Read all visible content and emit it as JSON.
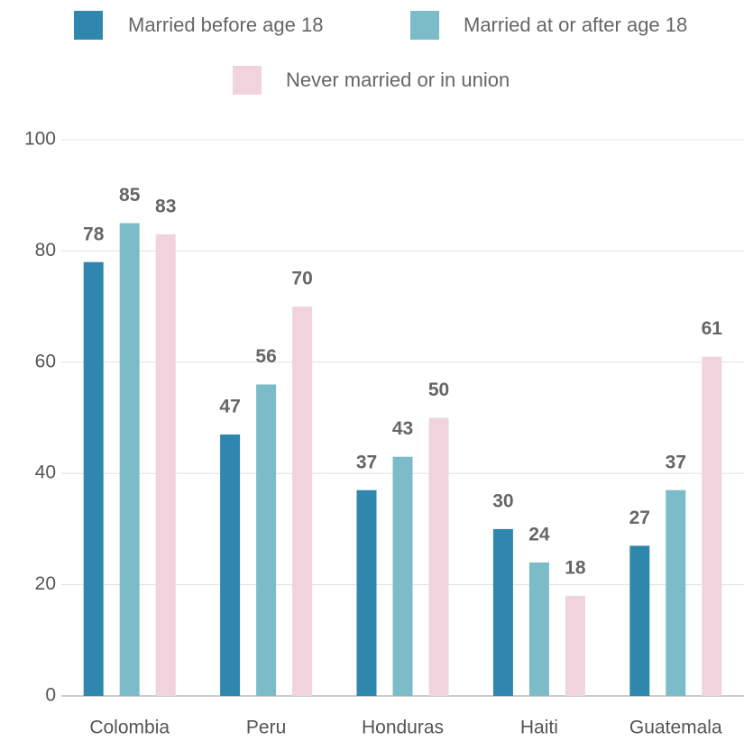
{
  "chart_data": {
    "type": "bar",
    "categories": [
      "Colombia",
      "Peru",
      "Honduras",
      "Haiti",
      "Guatemala"
    ],
    "series": [
      {
        "name": "Married before age 18",
        "color": "#2f87ad",
        "values": [
          78,
          47,
          37,
          30,
          27
        ]
      },
      {
        "name": "Married at or after age 18",
        "color": "#7bbcc8",
        "values": [
          85,
          56,
          43,
          24,
          37
        ]
      },
      {
        "name": "Never married or in union",
        "color": "#f0d3dd",
        "values": [
          83,
          70,
          50,
          18,
          61
        ]
      }
    ],
    "ylim": [
      0,
      100
    ],
    "yticks": [
      0,
      20,
      40,
      60,
      80,
      100
    ],
    "grid": true
  }
}
